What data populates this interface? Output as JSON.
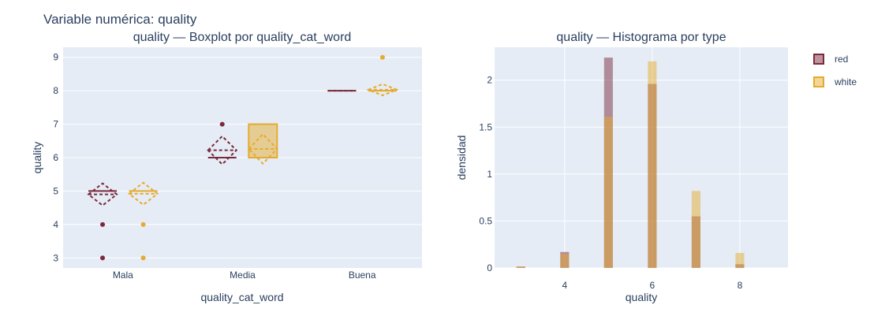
{
  "page_title": "Variable numérica: quality",
  "colors": {
    "red": "#7b2a3b",
    "white": "#e5ab30",
    "plot_bg": "#e5ecf6",
    "grid": "#ffffff",
    "text": "#2a3f5f"
  },
  "legend": [
    {
      "name": "red",
      "color": "#7b2a3b"
    },
    {
      "name": "white",
      "color": "#e5ab30"
    }
  ],
  "chart_data": [
    {
      "type": "box",
      "title": "quality — Boxplot por quality_cat_word",
      "xlabel": "quality_cat_word",
      "ylabel": "quality",
      "categories": [
        "Mala",
        "Media",
        "Buena"
      ],
      "ylim": [
        2.7,
        9.3
      ],
      "yticks": [
        3,
        4,
        5,
        6,
        7,
        8,
        9
      ],
      "series": [
        {
          "name": "red",
          "boxes": [
            {
              "category": "Mala",
              "q1": 5,
              "median": 5,
              "q3": 5,
              "mean": 4.9,
              "sd": 0.33,
              "outliers": [
                3,
                4
              ]
            },
            {
              "category": "Media",
              "q1": 6,
              "median": 6,
              "q3": 6,
              "mean": 6.22,
              "sd": 0.42,
              "outliers": [
                7
              ]
            },
            {
              "category": "Buena",
              "q1": 8,
              "median": 8,
              "q3": 8,
              "mean": 8,
              "sd": 0,
              "outliers": []
            }
          ]
        },
        {
          "name": "white",
          "boxes": [
            {
              "category": "Mala",
              "q1": 5,
              "median": 5,
              "q3": 5,
              "mean": 4.92,
              "sd": 0.33,
              "outliers": [
                3,
                4
              ]
            },
            {
              "category": "Media",
              "q1": 6,
              "median": 6,
              "q3": 7,
              "mean": 6.26,
              "sd": 0.44,
              "outliers": []
            },
            {
              "category": "Buena",
              "q1": 8,
              "median": 8,
              "q3": 8,
              "mean": 8.03,
              "sd": 0.17,
              "outliers": [
                9
              ]
            }
          ]
        }
      ]
    },
    {
      "type": "histogram",
      "title": "quality — Histograma por type",
      "xlabel": "quality",
      "ylabel": "densidad",
      "xlim": [
        2.4,
        9.1
      ],
      "ylim": [
        0,
        2.35
      ],
      "xticks": [
        4,
        6,
        8
      ],
      "yticks": [
        0,
        0.5,
        1,
        1.5,
        2
      ],
      "ytick_labels": [
        "0",
        "0.5",
        "1",
        "1.5",
        "2"
      ],
      "bin_width": 0.2,
      "overlay": true,
      "series": [
        {
          "name": "red",
          "x": [
            3,
            4,
            5,
            6,
            7,
            8
          ],
          "values": [
            0.015,
            0.17,
            2.24,
            1.96,
            0.55,
            0.04
          ]
        },
        {
          "name": "white",
          "x": [
            3,
            4,
            5,
            6,
            7,
            8
          ],
          "values": [
            0.015,
            0.15,
            1.61,
            2.2,
            0.82,
            0.16
          ]
        }
      ]
    }
  ]
}
